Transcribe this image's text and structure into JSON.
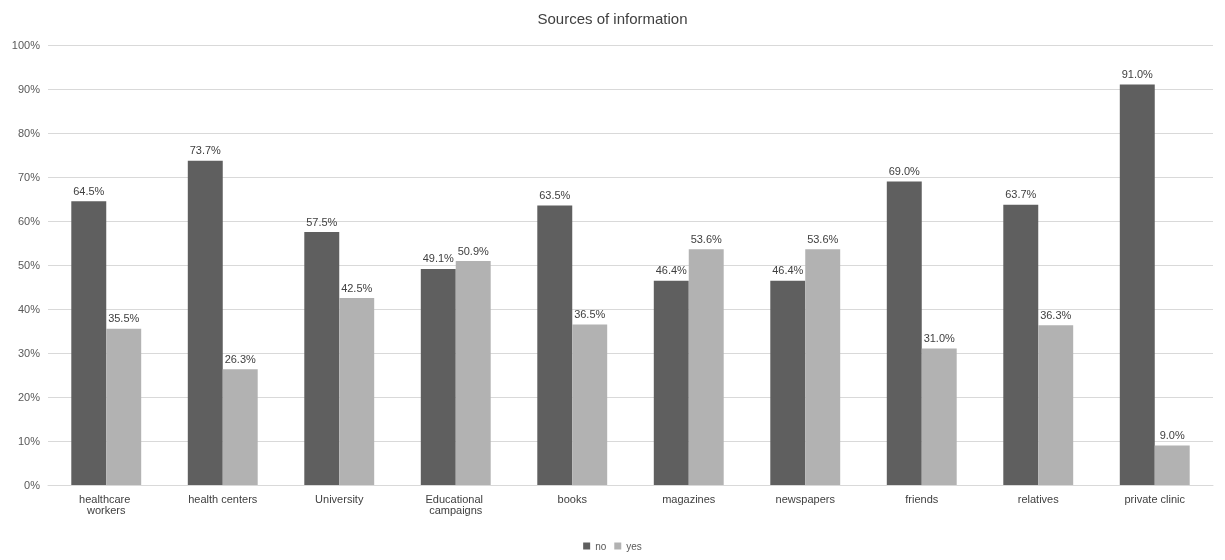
{
  "chart_data": {
    "type": "bar",
    "title": "Sources of information",
    "categories": [
      "healthcare workers",
      "health centers",
      "University",
      "Educational campaigns",
      "books",
      "magazines",
      "newspapers",
      "friends",
      "relatives",
      "private clinic"
    ],
    "series": [
      {
        "name": "no",
        "color": "#5f5f5f",
        "values": [
          64.5,
          73.7,
          57.5,
          49.1,
          63.5,
          46.4,
          46.4,
          69.0,
          63.7,
          91.0
        ],
        "value_labels": [
          "64.5%",
          "73.7%",
          "57.5%",
          "49.1%",
          "63.5%",
          "46.4%",
          "46.4%",
          "69.0%",
          "63.7%",
          "91.0%"
        ]
      },
      {
        "name": "yes",
        "color": "#b2b2b2",
        "values": [
          35.5,
          26.3,
          42.5,
          50.9,
          36.5,
          53.6,
          53.6,
          31.0,
          36.3,
          9.0
        ],
        "value_labels": [
          "35.5%",
          "26.3%",
          "42.5%",
          "50.9%",
          "36.5%",
          "53.6%",
          "53.6%",
          "31.0%",
          "36.3%",
          "9.0%"
        ]
      }
    ],
    "ylim": [
      0,
      100
    ],
    "yticks": [
      {
        "value": 0,
        "label": "0%"
      },
      {
        "value": 10,
        "label": "10%"
      },
      {
        "value": 20,
        "label": "20%"
      },
      {
        "value": 30,
        "label": "30%"
      },
      {
        "value": 40,
        "label": "40%"
      },
      {
        "value": 50,
        "label": "50%"
      },
      {
        "value": 60,
        "label": "60%"
      },
      {
        "value": 70,
        "label": "70%"
      },
      {
        "value": 80,
        "label": "80%"
      },
      {
        "value": 90,
        "label": "90%"
      },
      {
        "value": 100,
        "label": "100%"
      }
    ],
    "grid": "y",
    "legend": "bottom"
  }
}
